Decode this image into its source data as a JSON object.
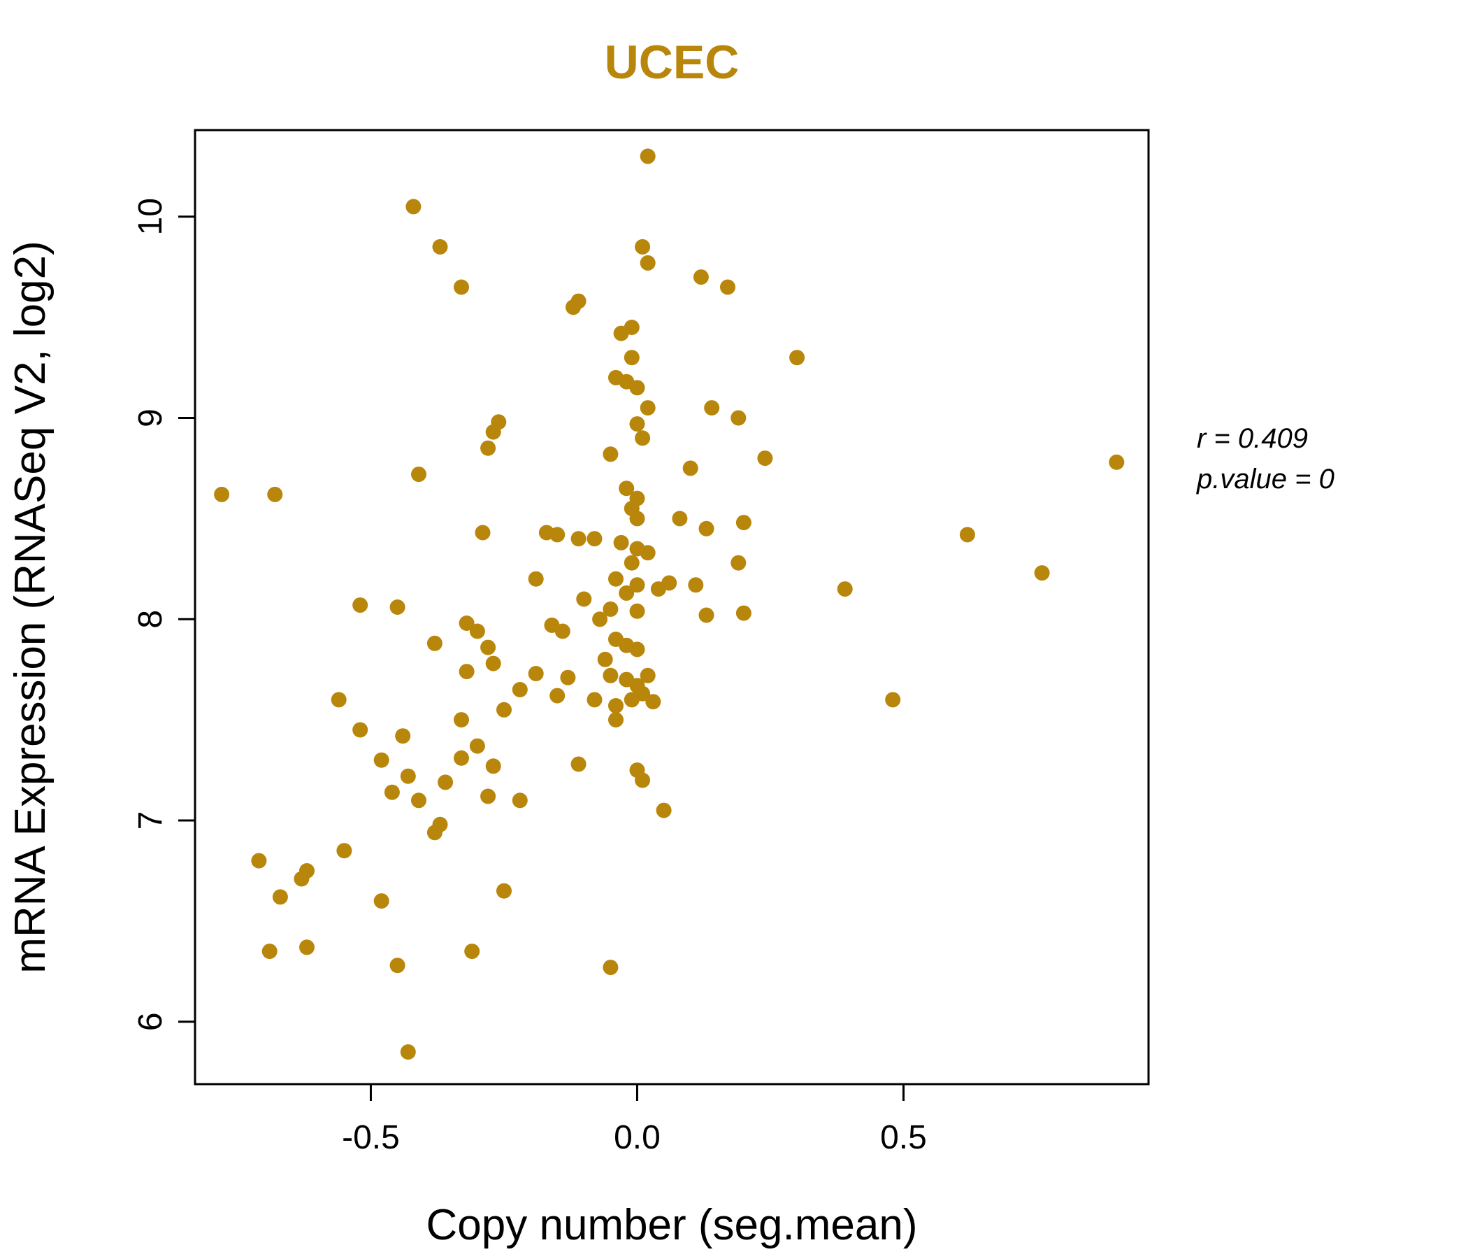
{
  "chart_data": {
    "type": "scatter",
    "title": "UCEC",
    "xlabel": "Copy number (seg.mean)",
    "ylabel": "mRNA Expression (RNASeq V2, log2)",
    "xlim": [
      -0.83,
      0.96
    ],
    "ylim": [
      5.69,
      10.43
    ],
    "x_ticks": [
      {
        "value": -0.5,
        "label": "-0.5"
      },
      {
        "value": 0.0,
        "label": "0.0"
      },
      {
        "value": 0.5,
        "label": "0.5"
      }
    ],
    "y_ticks": [
      {
        "value": 6,
        "label": "6"
      },
      {
        "value": 7,
        "label": "7"
      },
      {
        "value": 8,
        "label": "8"
      },
      {
        "value": 9,
        "label": "9"
      },
      {
        "value": 10,
        "label": "10"
      }
    ],
    "annotations": [
      "r = 0.409",
      "p.value = 0"
    ],
    "point_color": "#B8860B",
    "title_color": "#B8860B",
    "grid": false,
    "points": [
      [
        0.02,
        10.3
      ],
      [
        -0.42,
        10.05
      ],
      [
        -0.37,
        9.85
      ],
      [
        0.01,
        9.85
      ],
      [
        0.02,
        9.77
      ],
      [
        -0.33,
        9.65
      ],
      [
        0.12,
        9.7
      ],
      [
        0.17,
        9.65
      ],
      [
        -0.12,
        9.55
      ],
      [
        -0.11,
        9.58
      ],
      [
        -0.01,
        9.45
      ],
      [
        -0.03,
        9.42
      ],
      [
        0.3,
        9.3
      ],
      [
        -0.01,
        9.3
      ],
      [
        -0.02,
        9.18
      ],
      [
        0.0,
        9.15
      ],
      [
        -0.04,
        9.2
      ],
      [
        0.02,
        9.05
      ],
      [
        0.14,
        9.05
      ],
      [
        0.19,
        9.0
      ],
      [
        -0.26,
        8.98
      ],
      [
        -0.27,
        8.93
      ],
      [
        0.0,
        8.97
      ],
      [
        0.01,
        8.9
      ],
      [
        -0.28,
        8.85
      ],
      [
        -0.05,
        8.82
      ],
      [
        0.24,
        8.8
      ],
      [
        0.9,
        8.78
      ],
      [
        0.1,
        8.75
      ],
      [
        -0.41,
        8.72
      ],
      [
        -0.02,
        8.65
      ],
      [
        -0.78,
        8.62
      ],
      [
        -0.68,
        8.62
      ],
      [
        0.0,
        8.6
      ],
      [
        -0.01,
        8.55
      ],
      [
        0.0,
        8.5
      ],
      [
        0.08,
        8.5
      ],
      [
        0.13,
        8.45
      ],
      [
        0.2,
        8.48
      ],
      [
        -0.29,
        8.43
      ],
      [
        0.62,
        8.42
      ],
      [
        -0.17,
        8.43
      ],
      [
        -0.15,
        8.42
      ],
      [
        -0.11,
        8.4
      ],
      [
        -0.08,
        8.4
      ],
      [
        -0.03,
        8.38
      ],
      [
        0.0,
        8.35
      ],
      [
        0.02,
        8.33
      ],
      [
        -0.01,
        8.28
      ],
      [
        0.19,
        8.28
      ],
      [
        0.76,
        8.23
      ],
      [
        -0.19,
        8.2
      ],
      [
        -0.04,
        8.2
      ],
      [
        0.0,
        8.17
      ],
      [
        -0.02,
        8.13
      ],
      [
        0.04,
        8.15
      ],
      [
        0.06,
        8.18
      ],
      [
        0.39,
        8.15
      ],
      [
        -0.1,
        8.1
      ],
      [
        0.11,
        8.17
      ],
      [
        -0.52,
        8.07
      ],
      [
        -0.45,
        8.06
      ],
      [
        -0.05,
        8.05
      ],
      [
        0.0,
        8.04
      ],
      [
        -0.07,
        8.0
      ],
      [
        0.13,
        8.02
      ],
      [
        0.2,
        8.03
      ],
      [
        -0.32,
        7.98
      ],
      [
        -0.3,
        7.94
      ],
      [
        -0.16,
        7.97
      ],
      [
        -0.14,
        7.94
      ],
      [
        -0.38,
        7.88
      ],
      [
        -0.28,
        7.86
      ],
      [
        -0.04,
        7.9
      ],
      [
        -0.02,
        7.87
      ],
      [
        0.0,
        7.85
      ],
      [
        -0.06,
        7.8
      ],
      [
        -0.27,
        7.78
      ],
      [
        -0.32,
        7.74
      ],
      [
        -0.19,
        7.73
      ],
      [
        -0.13,
        7.71
      ],
      [
        -0.05,
        7.72
      ],
      [
        -0.02,
        7.7
      ],
      [
        0.0,
        7.67
      ],
      [
        0.02,
        7.72
      ],
      [
        -0.22,
        7.65
      ],
      [
        -0.15,
        7.62
      ],
      [
        -0.08,
        7.6
      ],
      [
        -0.04,
        7.57
      ],
      [
        -0.01,
        7.6
      ],
      [
        0.01,
        7.63
      ],
      [
        0.03,
        7.59
      ],
      [
        -0.56,
        7.6
      ],
      [
        0.48,
        7.6
      ],
      [
        -0.25,
        7.55
      ],
      [
        -0.04,
        7.5
      ],
      [
        -0.33,
        7.5
      ],
      [
        -0.52,
        7.45
      ],
      [
        -0.44,
        7.42
      ],
      [
        -0.3,
        7.37
      ],
      [
        -0.33,
        7.31
      ],
      [
        -0.48,
        7.3
      ],
      [
        -0.27,
        7.27
      ],
      [
        -0.11,
        7.28
      ],
      [
        0.0,
        7.25
      ],
      [
        0.01,
        7.2
      ],
      [
        -0.43,
        7.22
      ],
      [
        -0.36,
        7.19
      ],
      [
        -0.46,
        7.14
      ],
      [
        -0.41,
        7.1
      ],
      [
        -0.28,
        7.12
      ],
      [
        -0.22,
        7.1
      ],
      [
        -0.37,
        6.98
      ],
      [
        -0.38,
        6.94
      ],
      [
        0.05,
        7.05
      ],
      [
        -0.55,
        6.85
      ],
      [
        -0.71,
        6.8
      ],
      [
        -0.62,
        6.75
      ],
      [
        -0.63,
        6.71
      ],
      [
        -0.67,
        6.62
      ],
      [
        -0.48,
        6.6
      ],
      [
        -0.25,
        6.65
      ],
      [
        -0.69,
        6.35
      ],
      [
        -0.62,
        6.37
      ],
      [
        -0.45,
        6.28
      ],
      [
        -0.31,
        6.35
      ],
      [
        -0.05,
        6.27
      ],
      [
        -0.43,
        5.85
      ]
    ]
  }
}
